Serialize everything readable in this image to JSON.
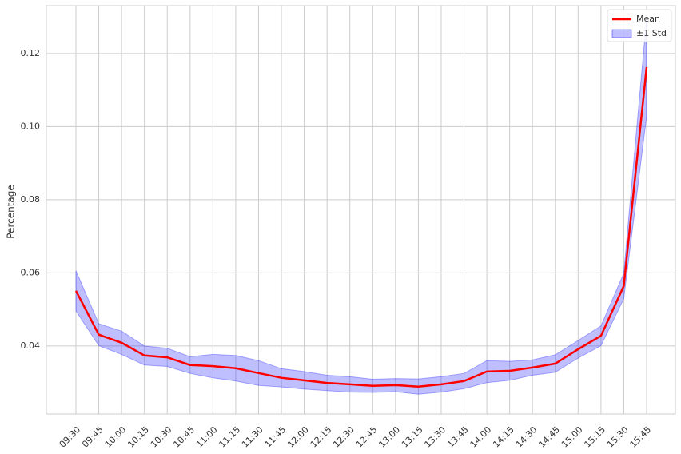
{
  "chart_data": {
    "type": "line-band",
    "ylabel": "Percentage",
    "categories": [
      "09:30",
      "09:45",
      "10:00",
      "10:15",
      "10:30",
      "10:45",
      "11:00",
      "11:15",
      "11:30",
      "11:45",
      "12:00",
      "12:15",
      "12:30",
      "12:45",
      "13:00",
      "13:15",
      "13:30",
      "13:45",
      "14:00",
      "14:15",
      "14:30",
      "14:45",
      "15:00",
      "15:15",
      "15:30",
      "15:45"
    ],
    "series": [
      {
        "name": "Mean",
        "color": "#ff0000",
        "values": [
          0.0551,
          0.0431,
          0.0409,
          0.0374,
          0.0369,
          0.0348,
          0.0345,
          0.0339,
          0.0326,
          0.0313,
          0.0306,
          0.0299,
          0.0295,
          0.0291,
          0.0293,
          0.0289,
          0.0295,
          0.0304,
          0.033,
          0.0332,
          0.0341,
          0.0352,
          0.0391,
          0.0428,
          0.0564,
          0.1163
        ]
      },
      {
        "name": "±1 Std",
        "color": "#0000ff",
        "values": [
          0.0055,
          0.003,
          0.0032,
          0.0026,
          0.0025,
          0.0023,
          0.0032,
          0.0035,
          0.0034,
          0.0025,
          0.0024,
          0.0021,
          0.0021,
          0.0018,
          0.0018,
          0.0021,
          0.0021,
          0.0021,
          0.003,
          0.0026,
          0.0021,
          0.0024,
          0.0024,
          0.0027,
          0.0035,
          0.0135
        ]
      }
    ],
    "ylim": [
      0.0214,
      0.1331
    ],
    "yticks": [
      0.04,
      0.06,
      0.08,
      {
        "value": 0.1,
        "label": "0.10"
      },
      0.12
    ],
    "grid": true,
    "legend": "upper-right"
  }
}
